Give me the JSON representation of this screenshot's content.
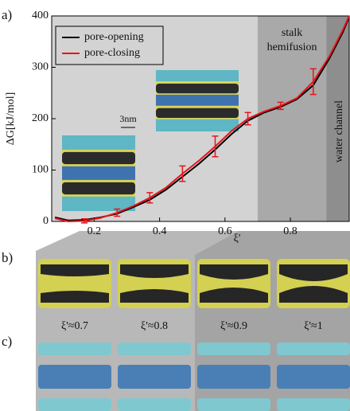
{
  "chart_data": {
    "type": "line",
    "x_label": "ξ'",
    "y_label": "ΔG[kJ/mol]",
    "x": [
      0.08,
      0.12,
      0.17,
      0.22,
      0.27,
      0.32,
      0.37,
      0.42,
      0.47,
      0.52,
      0.57,
      0.62,
      0.67,
      0.72,
      0.77,
      0.82,
      0.87,
      0.92,
      0.96,
      0.98
    ],
    "series": [
      {
        "name": "pore-opening",
        "color": "#000000",
        "values": [
          8,
          2,
          3,
          8,
          15,
          28,
          42,
          62,
          87,
          112,
          140,
          170,
          196,
          212,
          223,
          238,
          265,
          318,
          368,
          398
        ]
      },
      {
        "name": "pore-closing",
        "color": "#e8141b",
        "values": [
          6,
          0,
          1,
          7,
          17,
          30,
          46,
          66,
          93,
          118,
          146,
          176,
          200,
          214,
          225,
          240,
          272,
          322,
          372,
          400
        ],
        "errors": [
          null,
          null,
          4,
          null,
          7,
          null,
          10,
          null,
          15,
          null,
          20,
          null,
          12,
          null,
          7,
          null,
          25,
          null,
          null,
          null
        ]
      }
    ],
    "xlim": [
      0.07,
      0.98
    ],
    "ylim": [
      0,
      400
    ],
    "xticks": [
      0.2,
      0.4,
      0.6,
      0.8
    ],
    "yticks": [
      0,
      100,
      200,
      300,
      400
    ],
    "regions": [
      {
        "start": 0.7,
        "end": 0.91,
        "color": "#a9a9a9",
        "label": [
          "stalk",
          "hemifusion"
        ]
      },
      {
        "start": 0.91,
        "end": 0.98,
        "color": "#8e8e8e",
        "label": [
          "water channel"
        ]
      }
    ],
    "background": "#d3d3d3",
    "legend": "upper left",
    "scale_bar": "3nm"
  },
  "panel_labels": [
    "a)",
    "b)",
    "c)"
  ],
  "snapshot_labels": [
    "ξ'≈0.7",
    "ξ'≈0.8",
    "ξ'≈0.9",
    "ξ'≈1"
  ]
}
